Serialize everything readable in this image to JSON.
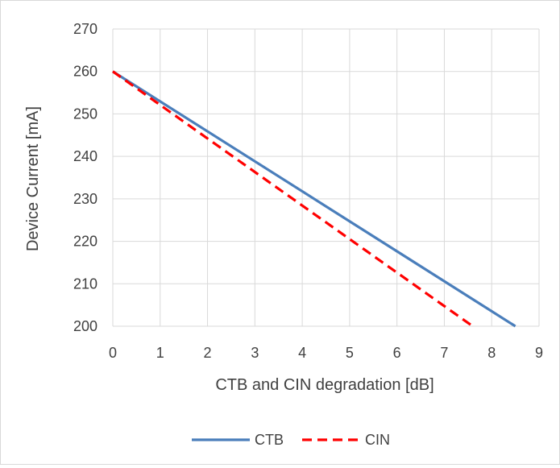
{
  "chart_data": {
    "type": "line",
    "title": "",
    "xlabel": "CTB and CIN degradation [dB]",
    "ylabel": "Device Current [mA]",
    "xlim": [
      0,
      9
    ],
    "ylim": [
      200,
      270
    ],
    "x_ticks": [
      "0",
      "1",
      "2",
      "3",
      "4",
      "5",
      "6",
      "7",
      "8",
      "9"
    ],
    "y_ticks": [
      "200",
      "210",
      "220",
      "230",
      "240",
      "250",
      "260",
      "270"
    ],
    "grid": true,
    "legend_position": "bottom",
    "series": [
      {
        "name": "CTB",
        "color": "#4a7ebb",
        "style": "solid",
        "x": [
          0,
          8.5
        ],
        "y": [
          260,
          200
        ]
      },
      {
        "name": "CIN",
        "color": "#ff0000",
        "style": "dashed",
        "x": [
          0,
          7.6
        ],
        "y": [
          260,
          200
        ]
      }
    ]
  }
}
